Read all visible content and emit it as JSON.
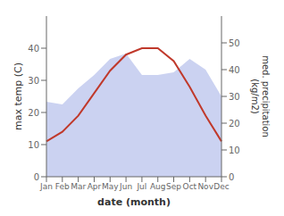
{
  "chart_data": {
    "type": "line",
    "xlabel": "date (month)",
    "ylabel": "max temp (C)",
    "y2label": "med. precipitation\n(kg/m2)",
    "categories": [
      "Jan",
      "Feb",
      "Mar",
      "Apr",
      "May",
      "Jun",
      "Jul",
      "Aug",
      "Sep",
      "Oct",
      "Nov",
      "Dec"
    ],
    "series": [
      {
        "type": "area",
        "axis": "y2",
        "color": "#c5cdf0",
        "values": [
          28,
          27,
          33,
          38,
          44,
          46,
          38,
          38,
          39,
          44,
          40,
          30
        ]
      },
      {
        "type": "line",
        "axis": "y",
        "color": "#c0392b",
        "values": [
          11,
          14,
          19,
          26,
          33,
          38,
          40,
          40,
          36,
          28,
          19,
          11
        ]
      }
    ],
    "ylim": [
      0,
      50
    ],
    "yticks": [
      0,
      10,
      20,
      30,
      40
    ],
    "y2lim": [
      0,
      60
    ],
    "y2ticks": [
      0,
      10,
      20,
      30,
      40,
      50
    ],
    "grid": false
  }
}
